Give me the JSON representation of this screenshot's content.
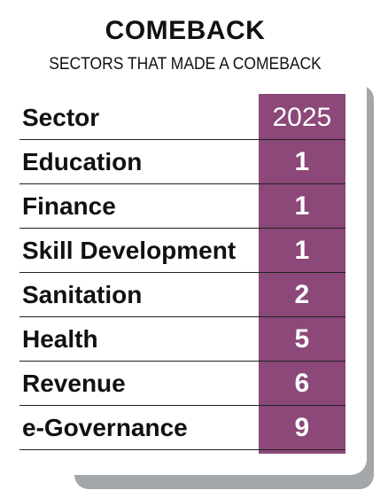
{
  "title": "COMEBACK",
  "subtitle": "SECTORS THAT MADE A COMEBACK",
  "colors": {
    "accent": "#8b4878",
    "shadow": "#a4a7aa"
  },
  "chart_data": {
    "type": "table",
    "title": "COMEBACK",
    "subtitle": "SECTORS THAT MADE A COMEBACK",
    "columns": [
      "Sector",
      "2025"
    ],
    "rows": [
      {
        "sector": "Education",
        "value": "1"
      },
      {
        "sector": "Finance",
        "value": "1"
      },
      {
        "sector": "Skill Development",
        "value": "1"
      },
      {
        "sector": "Sanitation",
        "value": "2"
      },
      {
        "sector": "Health",
        "value": "5"
      },
      {
        "sector": "Revenue",
        "value": "6"
      },
      {
        "sector": "e-Governance",
        "value": "9"
      }
    ]
  }
}
